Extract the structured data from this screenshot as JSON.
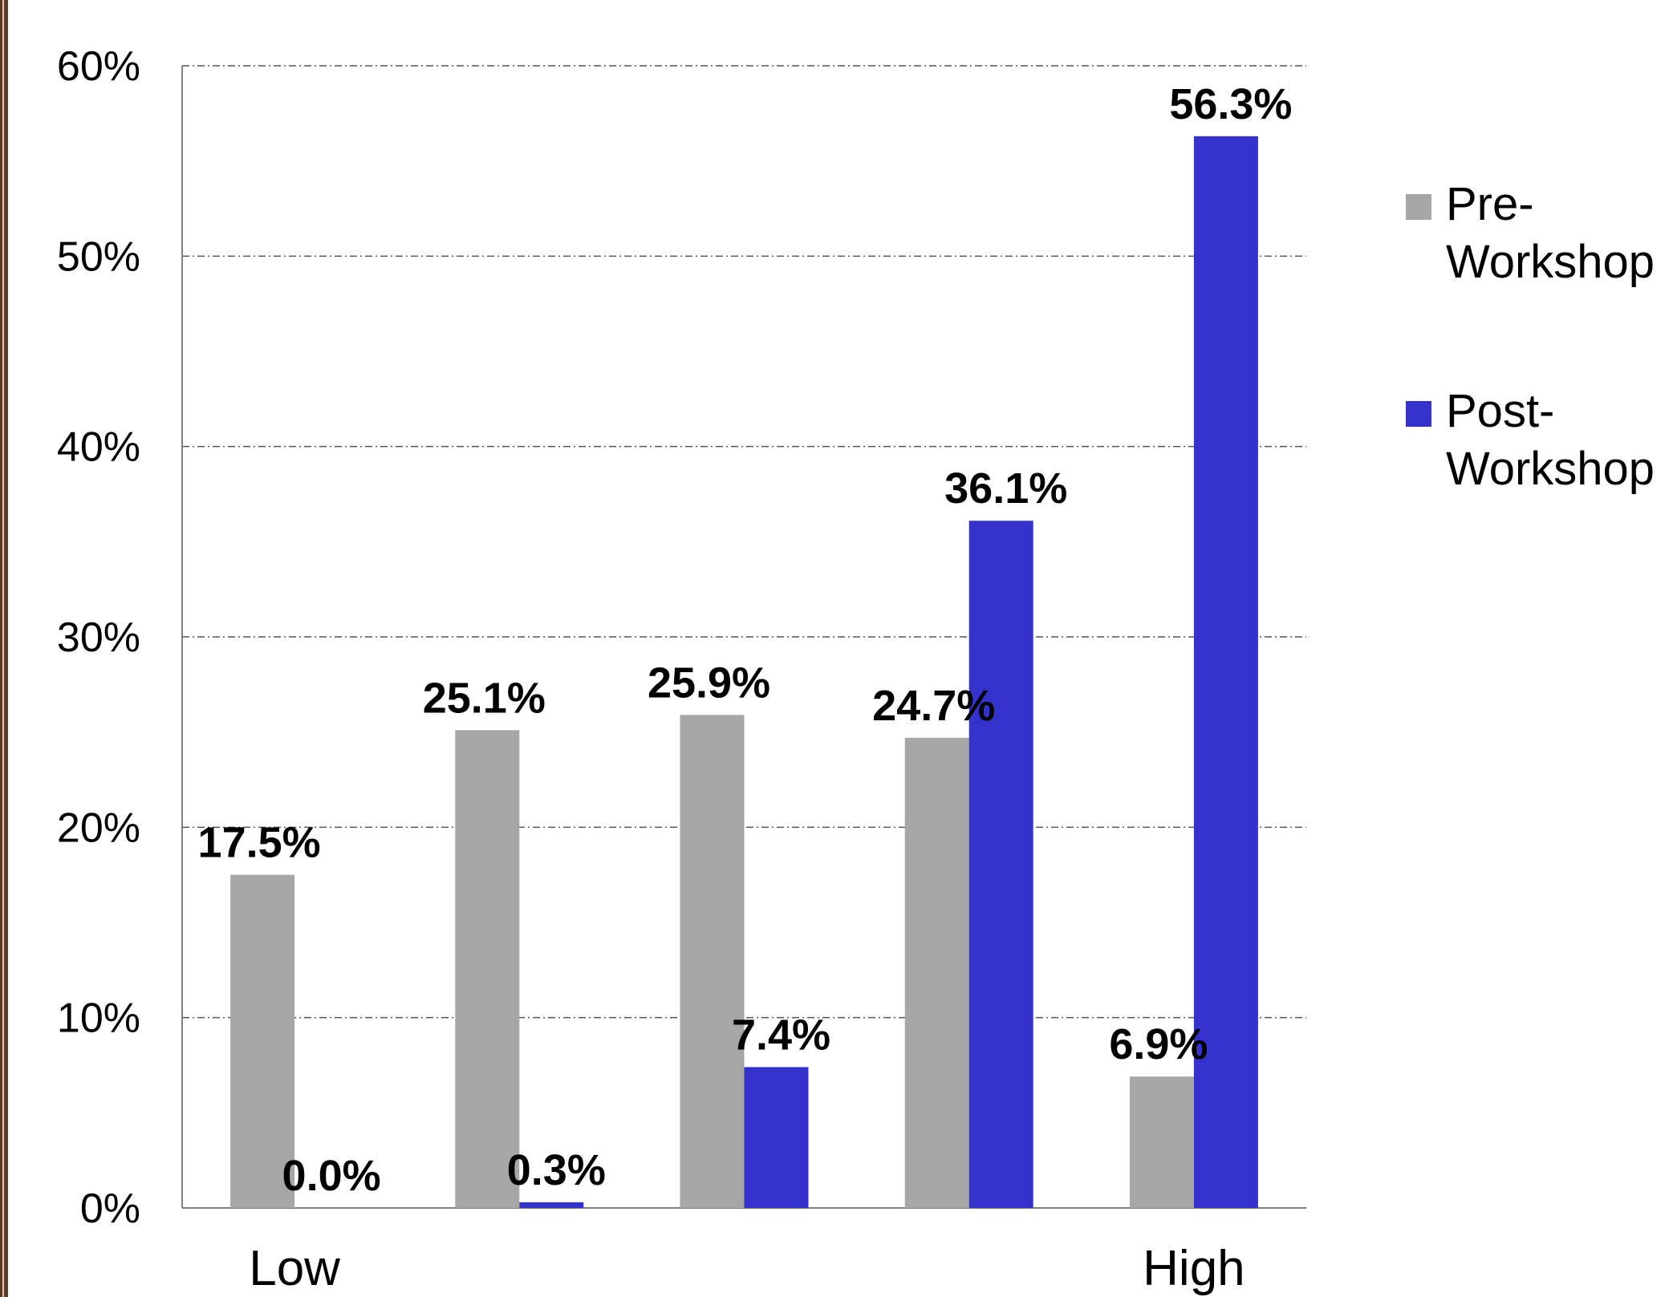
{
  "chart_data": {
    "type": "bar",
    "title": "",
    "xlabel": "",
    "ylabel": "",
    "categories": [
      "Low",
      "",
      "",
      "",
      "High"
    ],
    "ylim": [
      0,
      60
    ],
    "yticks": [
      "0%",
      "10%",
      "20%",
      "30%",
      "40%",
      "50%",
      "60%"
    ],
    "grid": true,
    "legend_position": "right",
    "series": [
      {
        "name": "Pre-Workshop",
        "legend_lines": [
          "Pre-",
          "Workshop"
        ],
        "color": "#a6a6a6",
        "values": [
          17.5,
          25.1,
          25.9,
          24.7,
          6.9
        ],
        "labels": [
          "17.5%",
          "25.1%",
          "25.9%",
          "24.7%",
          "6.9%"
        ]
      },
      {
        "name": "Post-Workshop",
        "legend_lines": [
          "Post-",
          "Workshop"
        ],
        "color": "#3333cc",
        "values": [
          0.0,
          0.3,
          7.4,
          36.1,
          56.3
        ],
        "labels": [
          "0.0%",
          "0.3%",
          "7.4%",
          "36.1%",
          "56.3%"
        ]
      }
    ]
  }
}
